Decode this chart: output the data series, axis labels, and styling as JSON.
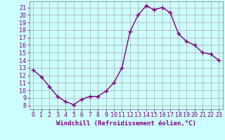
{
  "hours": [
    0,
    1,
    2,
    3,
    4,
    5,
    6,
    7,
    8,
    9,
    10,
    11,
    12,
    13,
    14,
    15,
    16,
    17,
    18,
    19,
    20,
    21,
    22,
    23
  ],
  "values": [
    12.7,
    11.8,
    10.5,
    9.2,
    8.5,
    8.1,
    8.8,
    9.2,
    9.2,
    9.9,
    11.0,
    13.0,
    17.8,
    20.0,
    21.2,
    20.7,
    21.0,
    20.3,
    17.5,
    16.5,
    16.0,
    15.0,
    14.8,
    14.0
  ],
  "line_color": "#800080",
  "marker": "+",
  "bg_color": "#ccffff",
  "grid_color": "#aaaaaa",
  "xlabel": "Windchill (Refroidissement éolien,°C)",
  "ylabel_ticks": [
    8,
    9,
    10,
    11,
    12,
    13,
    14,
    15,
    16,
    17,
    18,
    19,
    20,
    21
  ],
  "ylim": [
    7.5,
    21.8
  ],
  "xlim": [
    -0.5,
    23.5
  ],
  "tick_color": "#800080",
  "xlabel_color": "#800080",
  "xlabel_fontsize": 6.5,
  "axis_label_fontsize": 6.0,
  "line_width": 1.0,
  "marker_size": 4
}
